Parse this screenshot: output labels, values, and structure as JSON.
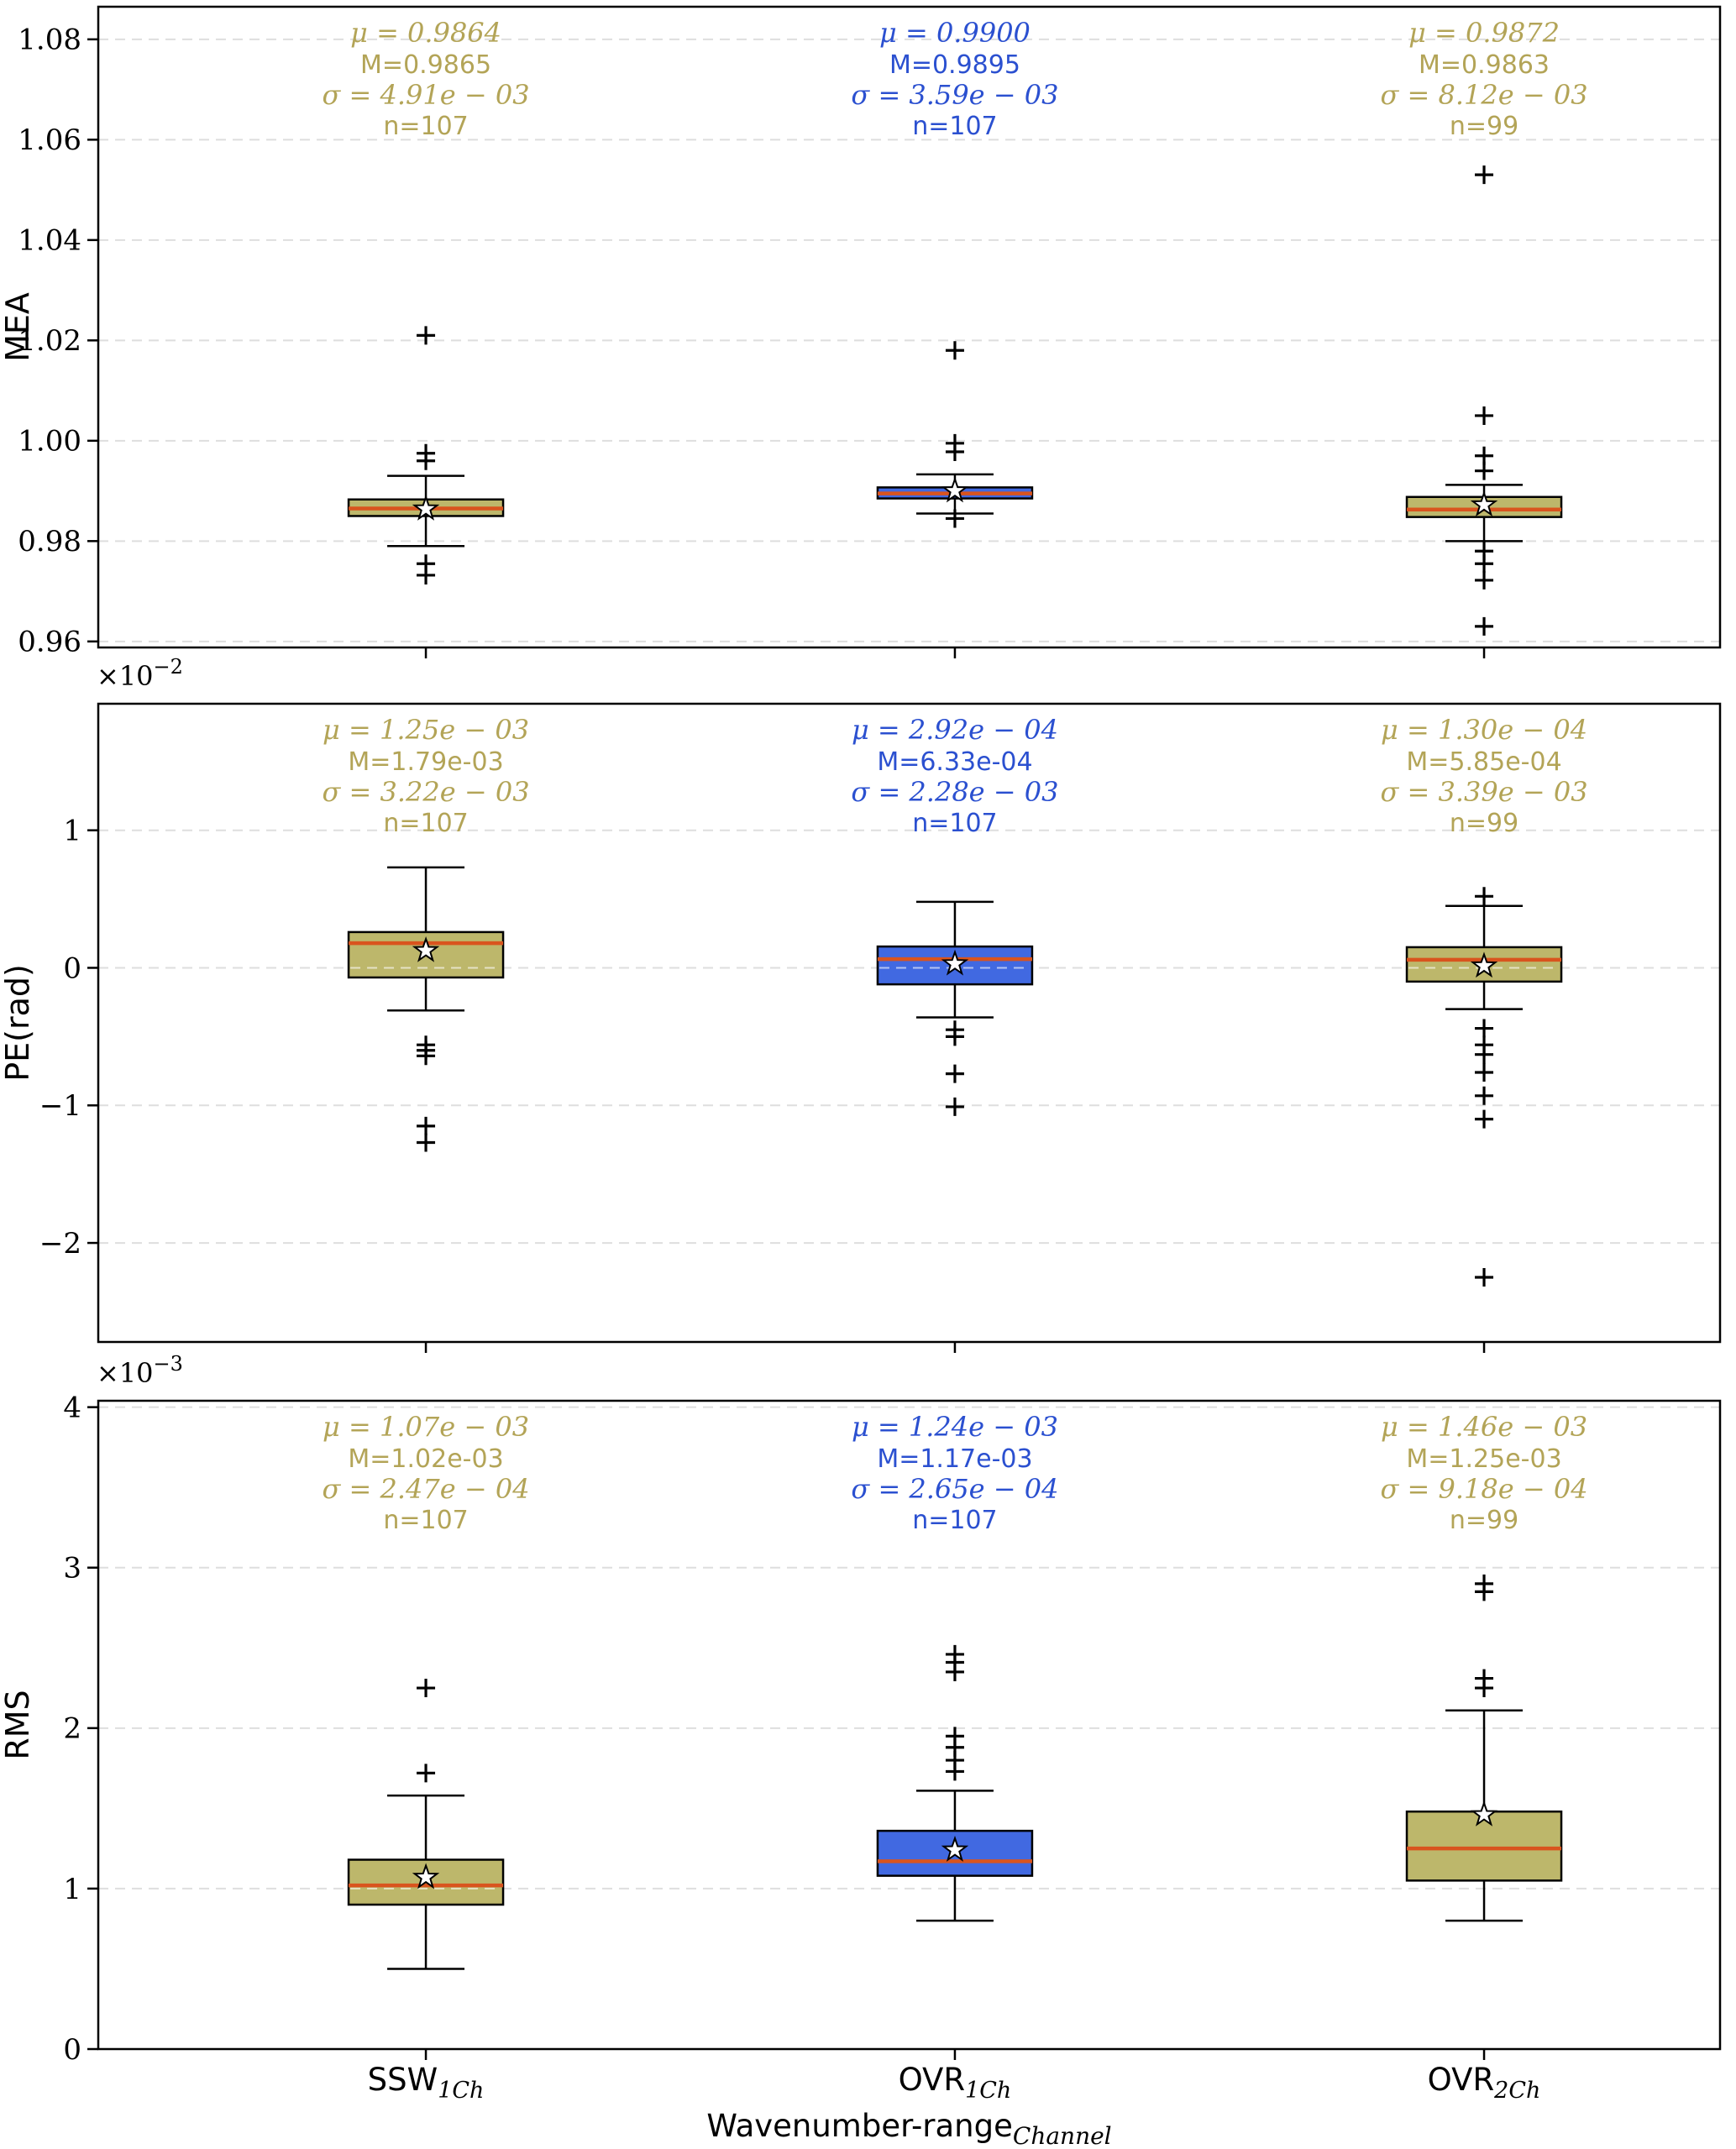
{
  "figure": {
    "xlabel_main": "Wavenumber-range",
    "xlabel_sub": "Channel",
    "categories": [
      {
        "main": "SSW",
        "sub": "1Ch"
      },
      {
        "main": "OVR",
        "sub": "1Ch"
      },
      {
        "main": "OVR",
        "sub": "2Ch"
      }
    ]
  },
  "colors": {
    "box": {
      "olive": "#bdb76b",
      "blue": "#4169e1"
    },
    "text": {
      "olive": "#b3a457",
      "blue": "#2b50d0"
    },
    "median": "#d9541e",
    "grid": "#dedede",
    "axis": "#000000",
    "overlay_dash": "rgba(255,255,255,0.6)"
  },
  "chart_data": [
    {
      "type": "box",
      "ylabel": "MEA",
      "ylim": [
        0.9588,
        1.0865
      ],
      "offset": null,
      "yticks": [
        {
          "v": 0.96,
          "label": "0.96"
        },
        {
          "v": 0.98,
          "label": "0.98"
        },
        {
          "v": 1.0,
          "label": "1.00"
        },
        {
          "v": 1.02,
          "label": "1.02"
        },
        {
          "v": 1.04,
          "label": "1.04"
        },
        {
          "v": 1.06,
          "label": "1.06"
        },
        {
          "v": 1.08,
          "label": "1.08"
        }
      ],
      "groups": [
        {
          "color_key": "olive",
          "stats_lines": [
            {
              "text": "μ = 0.9864",
              "style": "math"
            },
            {
              "text": "M=0.9865",
              "style": "plain"
            },
            {
              "text": "σ = 4.91e − 03",
              "style": "math"
            },
            {
              "text": "n=107",
              "style": "plain"
            }
          ],
          "q1": 0.985,
          "median": 0.9865,
          "q3": 0.9883,
          "whisker_low": 0.979,
          "whisker_high": 0.993,
          "mean": 0.9864,
          "outliers": [
            1.021,
            0.9975,
            0.996,
            0.9755,
            0.9732
          ]
        },
        {
          "color_key": "blue",
          "stats_lines": [
            {
              "text": "μ = 0.9900",
              "style": "math"
            },
            {
              "text": "M=0.9895",
              "style": "plain"
            },
            {
              "text": "σ = 3.59e − 03",
              "style": "math"
            },
            {
              "text": "n=107",
              "style": "plain"
            }
          ],
          "q1": 0.9885,
          "median": 0.9895,
          "q3": 0.9907,
          "whisker_low": 0.9855,
          "whisker_high": 0.9933,
          "mean": 0.99,
          "outliers": [
            1.018,
            0.9995,
            0.9978,
            0.9845
          ]
        },
        {
          "color_key": "olive",
          "stats_lines": [
            {
              "text": "μ = 0.9872",
              "style": "math"
            },
            {
              "text": "M=0.9863",
              "style": "plain"
            },
            {
              "text": "σ = 8.12e − 03",
              "style": "math"
            },
            {
              "text": "n=99",
              "style": "plain"
            }
          ],
          "q1": 0.9848,
          "median": 0.9863,
          "q3": 0.9888,
          "whisker_low": 0.98,
          "whisker_high": 0.9912,
          "mean": 0.9872,
          "outliers": [
            1.053,
            1.005,
            0.997,
            0.994,
            0.978,
            0.9755,
            0.9722,
            0.963
          ]
        }
      ]
    },
    {
      "type": "box",
      "ylabel": "PE(rad)",
      "ylim": [
        -2.72,
        1.92
      ],
      "offset": {
        "base": "×10",
        "exp": "−2"
      },
      "yticks": [
        {
          "v": -2,
          "label": "−2"
        },
        {
          "v": -1,
          "label": "−1"
        },
        {
          "v": 0,
          "label": "0"
        },
        {
          "v": 1,
          "label": "1"
        }
      ],
      "groups": [
        {
          "color_key": "olive",
          "stats_lines": [
            {
              "text": "μ = 1.25e − 03",
              "style": "math"
            },
            {
              "text": "M=1.79e-03",
              "style": "plain"
            },
            {
              "text": "σ = 3.22e − 03",
              "style": "math"
            },
            {
              "text": "n=107",
              "style": "plain"
            }
          ],
          "q1": -0.07,
          "median": 0.179,
          "q3": 0.26,
          "whisker_low": -0.31,
          "whisker_high": 0.73,
          "mean": 0.125,
          "outliers": [
            -0.56,
            -0.6,
            -0.64,
            -1.15,
            -1.27
          ]
        },
        {
          "color_key": "blue",
          "stats_lines": [
            {
              "text": "μ = 2.92e − 04",
              "style": "math"
            },
            {
              "text": "M=6.33e-04",
              "style": "plain"
            },
            {
              "text": "σ = 2.28e − 03",
              "style": "math"
            },
            {
              "text": "n=107",
              "style": "plain"
            }
          ],
          "q1": -0.12,
          "median": 0.063,
          "q3": 0.155,
          "whisker_low": -0.36,
          "whisker_high": 0.48,
          "mean": 0.029,
          "outliers": [
            -0.45,
            -0.5,
            -0.77,
            -1.01
          ]
        },
        {
          "color_key": "olive",
          "stats_lines": [
            {
              "text": "μ = 1.30e − 04",
              "style": "math"
            },
            {
              "text": "M=5.85e-04",
              "style": "plain"
            },
            {
              "text": "σ = 3.39e − 03",
              "style": "math"
            },
            {
              "text": "n=99",
              "style": "plain"
            }
          ],
          "q1": -0.1,
          "median": 0.0585,
          "q3": 0.15,
          "whisker_low": -0.3,
          "whisker_high": 0.45,
          "mean": 0.013,
          "outliers": [
            0.52,
            -0.44,
            -0.56,
            -0.63,
            -0.76,
            -0.93,
            -1.1,
            -2.25
          ]
        }
      ]
    },
    {
      "type": "box",
      "ylabel": "RMS",
      "ylim": [
        0,
        4.04
      ],
      "offset": {
        "base": "×10",
        "exp": "−3"
      },
      "yticks": [
        {
          "v": 0,
          "label": "0"
        },
        {
          "v": 1,
          "label": "1"
        },
        {
          "v": 2,
          "label": "2"
        },
        {
          "v": 3,
          "label": "3"
        },
        {
          "v": 4,
          "label": "4"
        }
      ],
      "groups": [
        {
          "color_key": "olive",
          "stats_lines": [
            {
              "text": "μ = 1.07e − 03",
              "style": "math"
            },
            {
              "text": "M=1.02e-03",
              "style": "plain"
            },
            {
              "text": "σ = 2.47e − 04",
              "style": "math"
            },
            {
              "text": "n=107",
              "style": "plain"
            }
          ],
          "q1": 0.9,
          "median": 1.02,
          "q3": 1.18,
          "whisker_low": 0.5,
          "whisker_high": 1.58,
          "mean": 1.07,
          "outliers": [
            1.72,
            2.25
          ]
        },
        {
          "color_key": "blue",
          "stats_lines": [
            {
              "text": "μ = 1.24e − 03",
              "style": "math"
            },
            {
              "text": "M=1.17e-03",
              "style": "plain"
            },
            {
              "text": "σ = 2.65e − 04",
              "style": "math"
            },
            {
              "text": "n=107",
              "style": "plain"
            }
          ],
          "q1": 1.08,
          "median": 1.17,
          "q3": 1.36,
          "whisker_low": 0.8,
          "whisker_high": 1.61,
          "mean": 1.24,
          "outliers": [
            1.73,
            1.8,
            1.88,
            1.95,
            2.35,
            2.41,
            2.46
          ]
        },
        {
          "color_key": "olive",
          "stats_lines": [
            {
              "text": "μ = 1.46e − 03",
              "style": "math"
            },
            {
              "text": "M=1.25e-03",
              "style": "plain"
            },
            {
              "text": "σ = 9.18e − 04",
              "style": "math"
            },
            {
              "text": "n=99",
              "style": "plain"
            }
          ],
          "q1": 1.05,
          "median": 1.25,
          "q3": 1.48,
          "whisker_low": 0.8,
          "whisker_high": 2.11,
          "mean": 1.46,
          "outliers": [
            2.25,
            2.31,
            2.85,
            2.9
          ]
        }
      ]
    }
  ]
}
